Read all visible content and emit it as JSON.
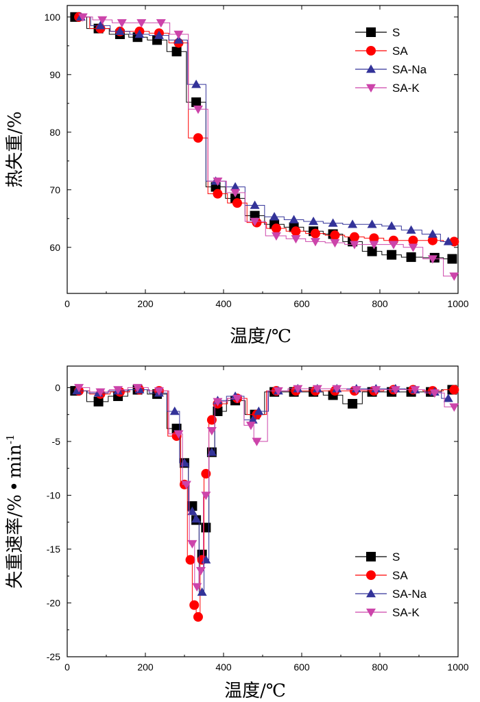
{
  "chart_data": [
    {
      "id": "tg",
      "type": "line",
      "xlabel": "温度/℃",
      "ylabel": "热失重/%",
      "xlim": [
        0,
        1000
      ],
      "ylim": [
        52,
        102
      ],
      "xticks": [
        0,
        200,
        400,
        600,
        800,
        1000
      ],
      "yticks": [
        60,
        70,
        80,
        90,
        100
      ],
      "grid": false,
      "legend_position": "top-right",
      "series": [
        {
          "name": "S",
          "color": "#000000",
          "marker": "square",
          "x": [
            20,
            80,
            135,
            180,
            230,
            280,
            330,
            380,
            430,
            480,
            530,
            580,
            630,
            680,
            730,
            780,
            830,
            880,
            940,
            985
          ],
          "y": [
            100,
            98,
            97,
            96.5,
            96,
            94,
            85.2,
            70.5,
            68.5,
            65.5,
            64,
            63.5,
            62.8,
            62.3,
            61,
            59.3,
            58.7,
            58.3,
            58.2,
            58
          ]
        },
        {
          "name": "SA",
          "color": "#ff0000",
          "marker": "circle",
          "x": [
            30,
            85,
            135,
            185,
            235,
            285,
            335,
            385,
            435,
            485,
            535,
            585,
            635,
            685,
            735,
            785,
            835,
            885,
            935,
            990
          ],
          "y": [
            100,
            98,
            97.5,
            97.5,
            97.2,
            95.5,
            79,
            69.3,
            67.7,
            64.3,
            63.3,
            62.8,
            62.4,
            62.1,
            61.8,
            61.6,
            61.2,
            61.2,
            61.2,
            61
          ]
        },
        {
          "name": "SA-Na",
          "color": "#333399",
          "marker": "triangle",
          "x": [
            35,
            85,
            135,
            185,
            235,
            285,
            330,
            380,
            430,
            480,
            530,
            580,
            630,
            680,
            730,
            780,
            830,
            880,
            935,
            975
          ],
          "y": [
            100,
            98.5,
            97.5,
            97,
            96.8,
            96,
            88.3,
            71.5,
            70.5,
            67.3,
            65.3,
            64.8,
            64.5,
            64.2,
            64,
            64,
            63.7,
            63,
            62.3,
            61
          ]
        },
        {
          "name": "SA-K",
          "color": "#cc44aa",
          "marker": "triangle-down",
          "x": [
            40,
            90,
            140,
            190,
            240,
            285,
            335,
            385,
            430,
            480,
            535,
            585,
            635,
            685,
            735,
            785,
            835,
            885,
            935,
            990
          ],
          "y": [
            100,
            99.5,
            99,
            99,
            99,
            97,
            84,
            71.5,
            69.5,
            64.5,
            62,
            61.5,
            61,
            60.8,
            60.5,
            60.5,
            60.5,
            60,
            58,
            55
          ]
        }
      ]
    },
    {
      "id": "dtg",
      "type": "line",
      "xlabel": "温度/℃",
      "ylabel": "失重速率/%·min⁻¹",
      "ylabel_main": "失重速率/%",
      "ylabel_dot": "•",
      "ylabel_unit": "min",
      "ylabel_sup": "-1",
      "xlim": [
        0,
        1000
      ],
      "ylim": [
        -25,
        2
      ],
      "xticks": [
        0,
        200,
        400,
        600,
        800,
        1000
      ],
      "yticks": [
        -25,
        -20,
        -15,
        -10,
        -5,
        0
      ],
      "grid": false,
      "legend_position": "bottom-right",
      "series": [
        {
          "name": "S",
          "color": "#000000",
          "marker": "square",
          "x": [
            20,
            80,
            130,
            180,
            230,
            280,
            300,
            320,
            330,
            345,
            355,
            370,
            385,
            430,
            480,
            530,
            580,
            630,
            680,
            730,
            780,
            830,
            880,
            930,
            985
          ],
          "y": [
            -0.3,
            -1.3,
            -0.8,
            -0.2,
            -0.6,
            -3.8,
            -7,
            -11,
            -12.3,
            -15.5,
            -13,
            -6,
            -2.2,
            -1.2,
            -2.5,
            -0.4,
            -0.4,
            -0.4,
            -0.7,
            -1.5,
            -0.4,
            -0.4,
            -0.4,
            -0.4,
            -0.2
          ]
        },
        {
          "name": "SA",
          "color": "#ff0000",
          "marker": "circle",
          "x": [
            30,
            85,
            135,
            185,
            235,
            280,
            300,
            315,
            325,
            335,
            345,
            355,
            370,
            385,
            435,
            485,
            535,
            585,
            635,
            685,
            735,
            785,
            835,
            885,
            935,
            990
          ],
          "y": [
            -0.3,
            -0.6,
            -0.4,
            -0.2,
            -0.3,
            -4.5,
            -9,
            -16,
            -20.2,
            -21.3,
            -16,
            -8,
            -3,
            -1.5,
            -1,
            -2.5,
            -0.3,
            -0.3,
            -0.3,
            -0.3,
            -0.3,
            -0.3,
            -0.2,
            -0.2,
            -0.3,
            -0.2
          ]
        },
        {
          "name": "SA-Na",
          "color": "#333399",
          "marker": "triangle",
          "x": [
            25,
            80,
            130,
            185,
            235,
            275,
            300,
            320,
            330,
            345,
            355,
            370,
            385,
            430,
            475,
            490,
            540,
            590,
            640,
            690,
            740,
            790,
            840,
            890,
            940,
            975
          ],
          "y": [
            -0.3,
            -0.5,
            -0.3,
            -0.2,
            -0.5,
            -2.2,
            -7,
            -11.5,
            -12.2,
            -19,
            -16,
            -6,
            -1.2,
            -0.8,
            -3,
            -2.2,
            -0.3,
            -0.1,
            -0.1,
            -0.1,
            -0.1,
            -0.1,
            -0.1,
            -0.2,
            -0.4,
            -1
          ]
        },
        {
          "name": "SA-K",
          "color": "#cc44aa",
          "marker": "triangle-down",
          "x": [
            30,
            85,
            130,
            180,
            235,
            285,
            305,
            320,
            332,
            342,
            355,
            370,
            385,
            435,
            470,
            485,
            540,
            590,
            640,
            690,
            740,
            790,
            840,
            890,
            940,
            990
          ],
          "y": [
            0,
            -0.4,
            -0.2,
            0,
            -0.3,
            -4.3,
            -9,
            -14.5,
            -18.5,
            -17,
            -10,
            -4,
            -1.3,
            -1,
            -3.5,
            -5,
            -0.3,
            -0.1,
            -0.1,
            -0.1,
            -0.2,
            -0.2,
            -0.2,
            -0.2,
            -0.5,
            -1.8
          ]
        }
      ]
    }
  ]
}
